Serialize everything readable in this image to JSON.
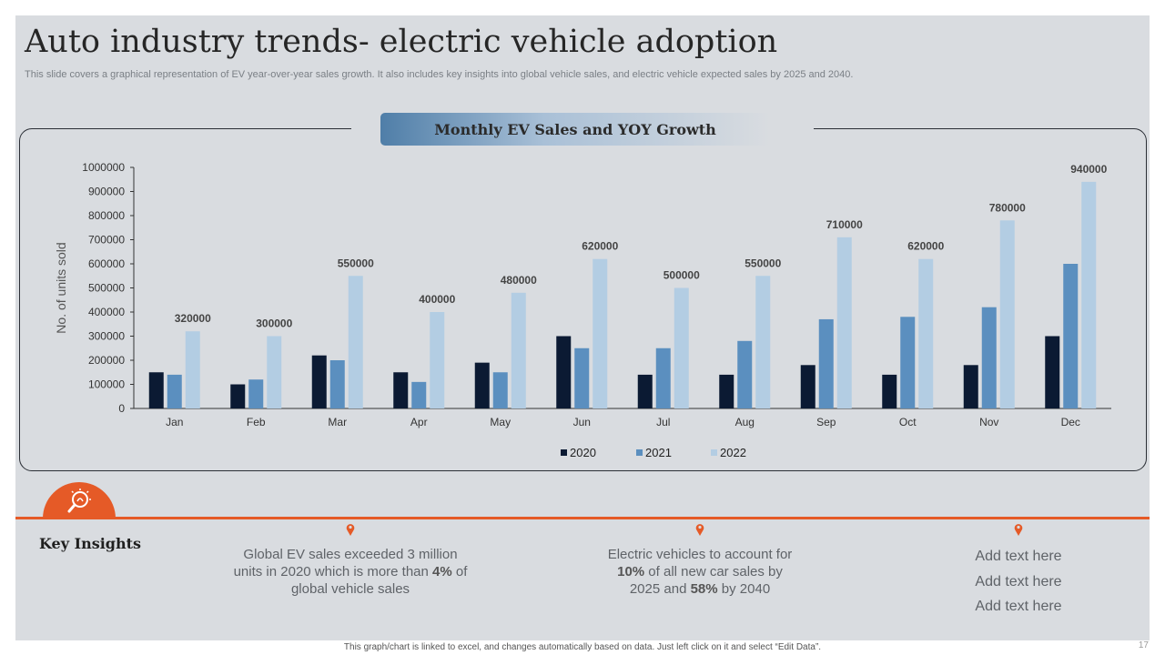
{
  "slide": {
    "title": "Auto industry trends- electric vehicle adoption",
    "subtitle": "This slide covers a graphical representation of EV year-over-year  sales growth.  It also includes key insights into global vehicle sales, and electric vehicle expected sales by 2025 and 2040.",
    "chart_banner": "Monthly EV Sales and YOY Growth",
    "footer_note": "This graph/chart is linked to excel, and changes automatically based on data. Just left click on it and select “Edit Data”.",
    "page_number": "17"
  },
  "colors": {
    "accent_orange": "#e55a27",
    "series_2020": "#0b1a33",
    "series_2021": "#5b8fbf",
    "series_2022": "#b3cde3"
  },
  "icons": {
    "badge": "lightbulb-magnifier-icon",
    "pin": "location-pin-icon"
  },
  "insights": {
    "title": "Key Insights",
    "first": {
      "pre": "Global EV sales exceeded 3 million units  in 2020 which is more than ",
      "bold": "4%",
      "post": " of global vehicle sales"
    },
    "second": {
      "pre": "Electric vehicles to account for ",
      "bold1": "10%",
      "mid": " of all new car sales by 2025 and ",
      "bold2": "58%",
      "post": " by 2040"
    },
    "third": [
      "Add text here",
      "Add text here",
      "Add text here"
    ]
  },
  "chart_data": {
    "type": "bar",
    "title": "Monthly EV Sales and YOY Growth",
    "xlabel": "",
    "ylabel": "No. of units sold",
    "ylim": [
      0,
      1000000
    ],
    "yticks": [
      0,
      100000,
      200000,
      300000,
      400000,
      500000,
      600000,
      700000,
      800000,
      900000,
      1000000
    ],
    "grid": false,
    "legend_position": "bottom",
    "categories": [
      "Jan",
      "Feb",
      "Mar",
      "Apr",
      "May",
      "Jun",
      "Jul",
      "Aug",
      "Sep",
      "Oct",
      "Nov",
      "Dec"
    ],
    "series": [
      {
        "name": "2020",
        "values": [
          150000,
          100000,
          220000,
          150000,
          190000,
          300000,
          140000,
          140000,
          180000,
          140000,
          180000,
          300000
        ],
        "labels": false
      },
      {
        "name": "2021",
        "values": [
          140000,
          120000,
          200000,
          110000,
          150000,
          250000,
          250000,
          280000,
          370000,
          380000,
          420000,
          600000
        ],
        "labels": false
      },
      {
        "name": "2022",
        "values": [
          320000,
          300000,
          550000,
          400000,
          480000,
          620000,
          500000,
          550000,
          710000,
          620000,
          780000,
          940000
        ],
        "labels": true
      }
    ]
  }
}
